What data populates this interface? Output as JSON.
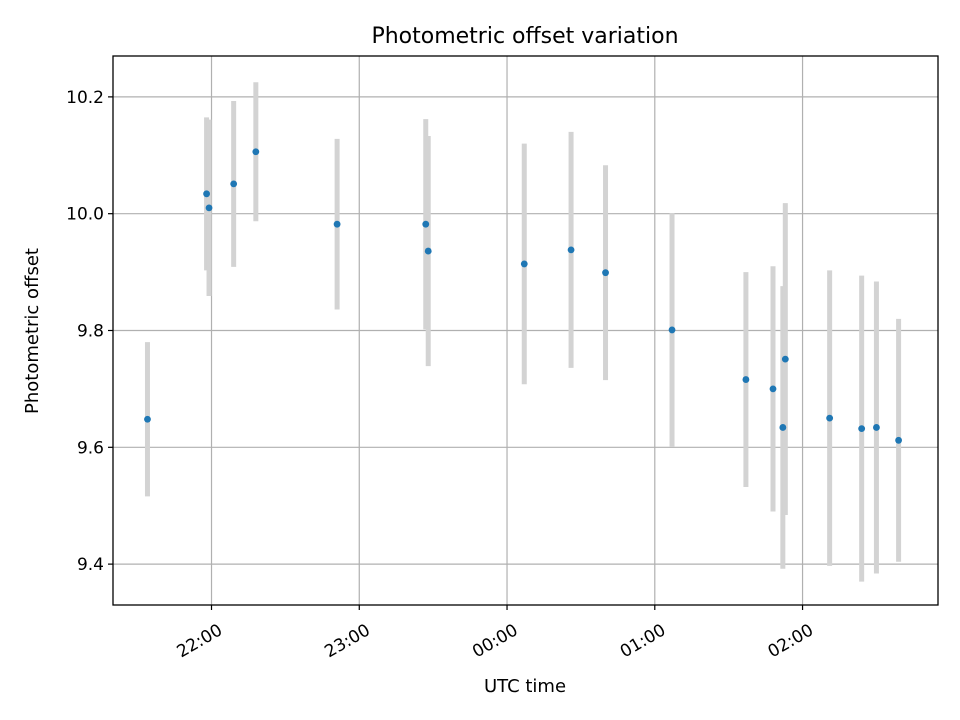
{
  "chart_data": {
    "type": "scatter",
    "title": "Photometric offset variation",
    "xlabel": "UTC time",
    "ylabel": "Photometric offset",
    "grid": true,
    "xlim": [
      "21:20",
      "02:55"
    ],
    "ylim": [
      9.33,
      10.27
    ],
    "x_ticks": [
      "22:00",
      "23:00",
      "00:00",
      "01:00",
      "02:00"
    ],
    "y_ticks": [
      9.4,
      9.6,
      9.8,
      10.0,
      10.2
    ],
    "colors": {
      "point": "#1f77b4",
      "errorbar": "#d3d3d3"
    },
    "points": [
      {
        "x": "21:34",
        "y": 9.648,
        "yerr": 0.132
      },
      {
        "x": "21:58",
        "y": 10.034,
        "yerr": 0.131
      },
      {
        "x": "21:59",
        "y": 10.01,
        "yerr": 0.151
      },
      {
        "x": "22:09",
        "y": 10.051,
        "yerr": 0.142
      },
      {
        "x": "22:18",
        "y": 10.106,
        "yerr": 0.119
      },
      {
        "x": "22:51",
        "y": 9.982,
        "yerr": 0.146
      },
      {
        "x": "23:27",
        "y": 9.982,
        "yerr": 0.18
      },
      {
        "x": "23:28",
        "y": 9.936,
        "yerr": 0.197
      },
      {
        "x": "00:07",
        "y": 9.914,
        "yerr": 0.206
      },
      {
        "x": "00:26",
        "y": 9.938,
        "yerr": 0.202
      },
      {
        "x": "00:40",
        "y": 9.899,
        "yerr": 0.184
      },
      {
        "x": "01:07",
        "y": 9.801,
        "yerr": 0.2
      },
      {
        "x": "01:37",
        "y": 9.716,
        "yerr": 0.184
      },
      {
        "x": "01:48",
        "y": 9.7,
        "yerr": 0.21
      },
      {
        "x": "01:52",
        "y": 9.634,
        "yerr": 0.242
      },
      {
        "x": "01:53",
        "y": 9.751,
        "yerr": 0.267
      },
      {
        "x": "02:11",
        "y": 9.65,
        "yerr": 0.253
      },
      {
        "x": "02:24",
        "y": 9.632,
        "yerr": 0.262
      },
      {
        "x": "02:30",
        "y": 9.634,
        "yerr": 0.25
      },
      {
        "x": "02:39",
        "y": 9.612,
        "yerr": 0.208
      }
    ]
  }
}
